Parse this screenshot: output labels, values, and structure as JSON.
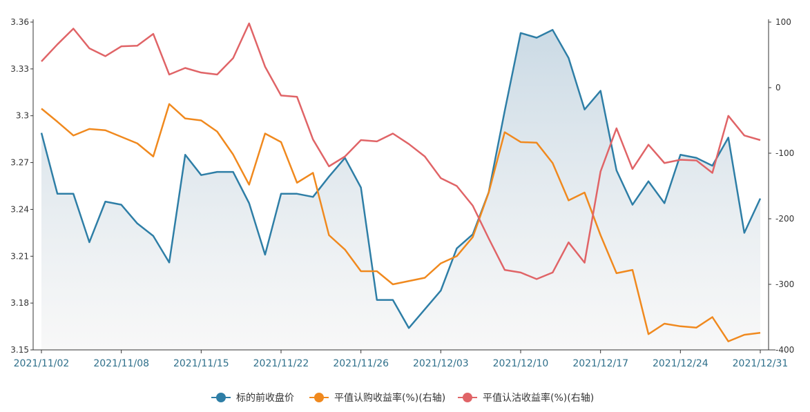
{
  "chart_data": {
    "type": "line",
    "x_tick_labels": [
      "2021/11/02",
      "2021/11/08",
      "2021/11/15",
      "2021/11/22",
      "2021/11/26",
      "2021/12/03",
      "2021/12/10",
      "2021/12/17",
      "2021/12/24",
      "2021/12/31"
    ],
    "y_left": {
      "ylim": [
        3.15,
        3.36
      ],
      "ticks": [
        "3.15",
        "3.18",
        "3.21",
        "3.24",
        "3.27",
        "3.3",
        "3.33",
        "3.36"
      ]
    },
    "y_right": {
      "ylim": [
        -400,
        100
      ],
      "ticks": [
        "-400",
        "-300",
        "-200",
        "-100",
        "0",
        "100"
      ]
    },
    "legend_position": "bottom-center",
    "grid": false,
    "series": [
      {
        "name": "标的前收盘价",
        "axis": "left",
        "color": "#2e7ea6",
        "area": true,
        "values": [
          3.289,
          3.25,
          3.25,
          3.219,
          3.245,
          3.243,
          3.231,
          3.223,
          3.206,
          3.275,
          3.262,
          3.264,
          3.264,
          3.244,
          3.211,
          3.25,
          3.25,
          3.248,
          3.261,
          3.273,
          3.254,
          3.182,
          3.182,
          3.164,
          3.176,
          3.188,
          3.215,
          3.224,
          3.251,
          3.303,
          3.353,
          3.35,
          3.355,
          3.337,
          3.304,
          3.316,
          3.265,
          3.243,
          3.258,
          3.244,
          3.275,
          3.273,
          3.268,
          3.286,
          3.225,
          3.247
        ]
      },
      {
        "name": "平值认购收益率(%)(右轴)",
        "axis": "right",
        "color": "#f0891e",
        "values": [
          -32,
          -52,
          -73,
          -63,
          -65,
          -75,
          -85,
          -105,
          -25,
          -47,
          -50,
          -67,
          -102,
          -148,
          -70,
          -83,
          -145,
          -130,
          -225,
          -247,
          -280,
          -280,
          -300,
          -295,
          -290,
          -268,
          -257,
          -228,
          -160,
          -68,
          -83,
          -84,
          -115,
          -172,
          -160,
          -225,
          -283,
          -278,
          -376,
          -360,
          -364,
          -366,
          -350,
          -387,
          -377,
          -374
        ]
      },
      {
        "name": "平值认沽收益率(%)(右轴)",
        "axis": "right",
        "color": "#e06467",
        "values": [
          40,
          66,
          90,
          60,
          48,
          63,
          64,
          82,
          20,
          30,
          23,
          20,
          45,
          98,
          32,
          -12,
          -14,
          -79,
          -120,
          -105,
          -80,
          -82,
          -70,
          -86,
          -105,
          -138,
          -150,
          -180,
          -230,
          -278,
          -282,
          -292,
          -282,
          -236,
          -267,
          -128,
          -62,
          -124,
          -87,
          -115,
          -110,
          -111,
          -130,
          -43,
          -73,
          -80
        ]
      }
    ]
  }
}
